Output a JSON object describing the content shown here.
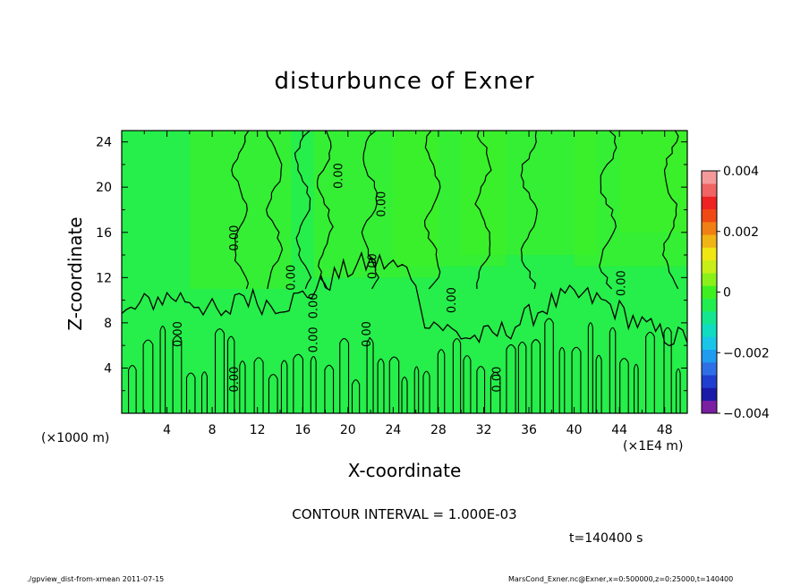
{
  "chart_data": {
    "type": "heatmap",
    "title": "disturbunce of Exner",
    "xlabel": "X-coordinate",
    "ylabel": "Z-coordinate",
    "x_unit": "(×1E4 m)",
    "y_unit": "(×1000 m)",
    "xlim": [
      0,
      50
    ],
    "ylim": [
      0,
      25
    ],
    "x_ticks": [
      4,
      8,
      12,
      16,
      20,
      24,
      28,
      32,
      36,
      40,
      44,
      48
    ],
    "y_ticks": [
      4,
      8,
      12,
      16,
      20,
      24
    ],
    "colorbar": {
      "min": -0.004,
      "max": 0.004,
      "tick_labels": [
        "0.004",
        "0.002",
        "0",
        "−0.002",
        "−0.004"
      ],
      "tick_values": [
        0.004,
        0.002,
        0,
        -0.002,
        -0.004
      ],
      "colors": [
        "#7a1fa2",
        "#1a1aa8",
        "#1f3fd0",
        "#2f6fe6",
        "#1f9cf0",
        "#19c6e8",
        "#10dcc0",
        "#14e690",
        "#20ee50",
        "#3ff020",
        "#8af01a",
        "#c8ee18",
        "#f0e614",
        "#f0b414",
        "#f08014",
        "#f04a14",
        "#ee2222",
        "#f06464",
        "#f49a9a"
      ],
      "background_value_color": "#26ee4a"
    },
    "contour_labels": [
      "0.00"
    ],
    "contour_interval": "CONTOUR INTERVAL = 1.000E-03",
    "timestamp": "t=140400 s"
  },
  "footer": {
    "left": "./gpview_dist-from-xmean   2011-07-15",
    "right": "MarsCond_Exner.nc@Exner,x=0:500000,z=0:25000,t=140400"
  }
}
